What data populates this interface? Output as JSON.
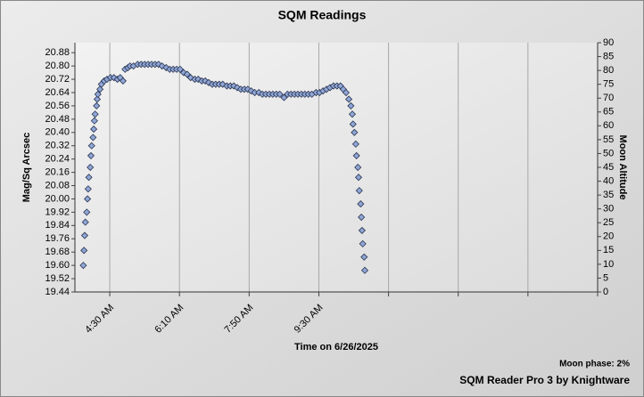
{
  "chart_data": {
    "type": "scatter",
    "title": "SQM Readings",
    "xlabel": "Time on 6/26/2025",
    "ylabel": "Mag/Sq Arcsec",
    "y2label": "Moon Altitude",
    "footnote": "Moon phase: 2%",
    "credit": "SQM Reader Pro 3 by Knightware",
    "marker": "diamond",
    "color": "#8fa6d6",
    "grid": true,
    "xlim": [
      220,
      970
    ],
    "xticks": [
      {
        "value": 270,
        "label": "4:30 AM"
      },
      {
        "value": 370,
        "label": "6:10 AM"
      },
      {
        "value": 470,
        "label": "7:50 AM"
      },
      {
        "value": 570,
        "label": "9:30 AM"
      },
      {
        "value": 670,
        "label": null
      },
      {
        "value": 770,
        "label": null
      },
      {
        "value": 870,
        "label": null
      },
      {
        "value": 970,
        "label": null
      }
    ],
    "ylim": [
      19.44,
      20.94
    ],
    "yticks": [
      19.44,
      19.52,
      {
        "value": 19.6,
        "label": "19.60"
      },
      19.68,
      19.76,
      19.84,
      19.92,
      {
        "value": 20.0,
        "label": "20.00"
      },
      20.08,
      20.16,
      20.24,
      20.32,
      {
        "value": 20.4,
        "label": "20.40"
      },
      20.48,
      20.56,
      20.64,
      20.72,
      {
        "value": 20.8,
        "label": "20.80"
      },
      20.88
    ],
    "y2lim": [
      0,
      90
    ],
    "y2ticks": [
      0,
      5,
      10,
      15,
      20,
      25,
      30,
      35,
      40,
      45,
      50,
      55,
      60,
      65,
      70,
      75,
      80,
      85,
      90
    ],
    "x": [
      232,
      233,
      234,
      235,
      237,
      238,
      239,
      240,
      242,
      243,
      244,
      246,
      247,
      248,
      249,
      251,
      252,
      253,
      256,
      258,
      262,
      266,
      271,
      276,
      281,
      285,
      289,
      292,
      296,
      299,
      304,
      310,
      315,
      320,
      325,
      330,
      335,
      340,
      345,
      351,
      356,
      361,
      366,
      371,
      376,
      381,
      386,
      392,
      397,
      402,
      407,
      412,
      417,
      422,
      427,
      432,
      438,
      443,
      448,
      453,
      458,
      463,
      468,
      473,
      478,
      484,
      489,
      494,
      499,
      504,
      509,
      514,
      520,
      525,
      530,
      535,
      540,
      545,
      550,
      555,
      560,
      566,
      571,
      576,
      581,
      586,
      591,
      596,
      601,
      605,
      609,
      613,
      616,
      618,
      619,
      621,
      623,
      624,
      626,
      627,
      628,
      630,
      631,
      632,
      633,
      635,
      636
    ],
    "values": [
      19.6,
      19.69,
      19.78,
      19.86,
      19.92,
      20.0,
      20.06,
      20.13,
      20.19,
      20.26,
      20.32,
      20.37,
      20.42,
      20.47,
      20.51,
      20.56,
      20.6,
      20.63,
      20.66,
      20.69,
      20.71,
      20.72,
      20.73,
      20.73,
      20.72,
      20.73,
      20.71,
      20.78,
      20.79,
      20.8,
      20.8,
      20.81,
      20.81,
      20.81,
      20.81,
      20.81,
      20.81,
      20.81,
      20.8,
      20.79,
      20.78,
      20.78,
      20.78,
      20.78,
      20.76,
      20.75,
      20.73,
      20.72,
      20.72,
      20.71,
      20.71,
      20.7,
      20.69,
      20.69,
      20.69,
      20.69,
      20.68,
      20.68,
      20.68,
      20.67,
      20.66,
      20.66,
      20.66,
      20.65,
      20.64,
      20.64,
      20.63,
      20.63,
      20.63,
      20.63,
      20.63,
      20.63,
      20.61,
      20.63,
      20.63,
      20.63,
      20.63,
      20.63,
      20.63,
      20.63,
      20.63,
      20.64,
      20.64,
      20.65,
      20.66,
      20.67,
      20.68,
      20.68,
      20.68,
      20.66,
      20.64,
      20.6,
      20.56,
      20.51,
      20.45,
      20.4,
      20.33,
      20.26,
      20.19,
      20.13,
      20.05,
      19.97,
      19.89,
      19.81,
      19.73,
      19.65,
      19.57
    ]
  }
}
